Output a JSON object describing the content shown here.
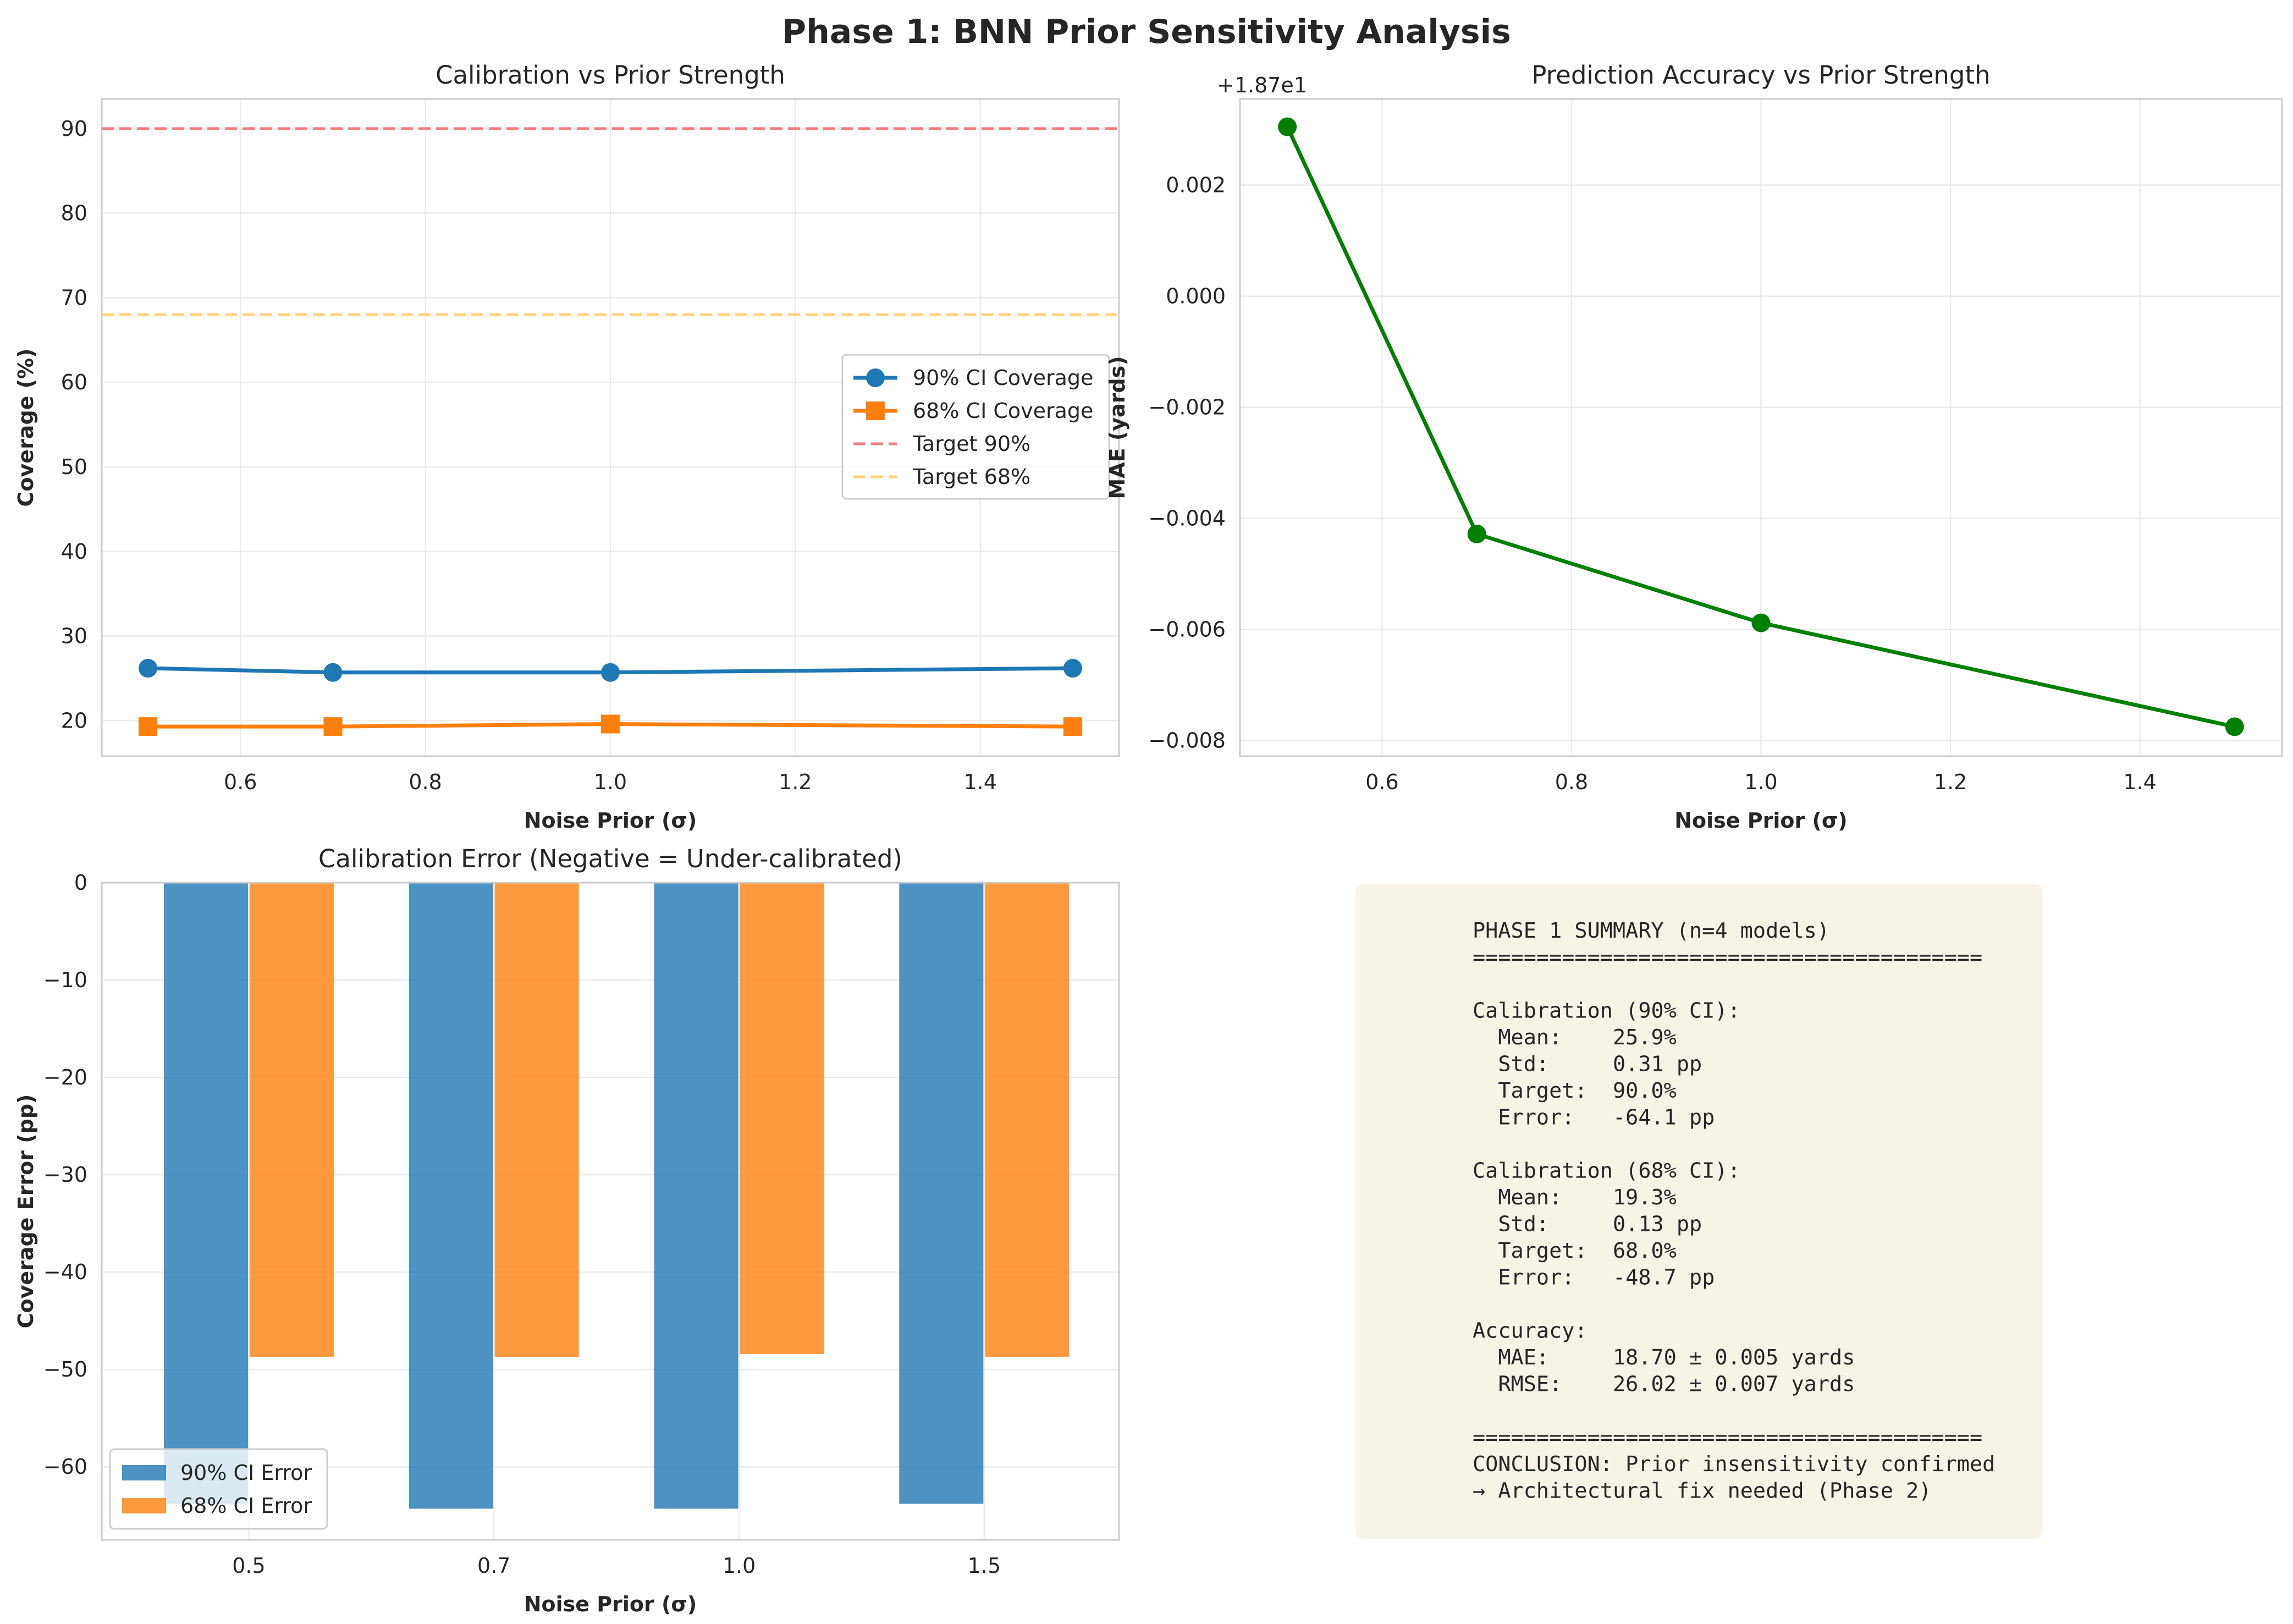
{
  "figure": {
    "suptitle": "Phase 1: BNN Prior Sensitivity Analysis"
  },
  "chart_data": [
    {
      "type": "line",
      "title": "Calibration vs Prior Strength",
      "xlabel": "Noise Prior (σ)",
      "ylabel": "Coverage (%)",
      "xlim": [
        0.45,
        1.55
      ],
      "ylim": [
        15.8,
        93.5
      ],
      "xticks": [
        0.6,
        0.8,
        1.0,
        1.2,
        1.4
      ],
      "xtick_labels": [
        "0.6",
        "0.8",
        "1.0",
        "1.2",
        "1.4"
      ],
      "yticks": [
        20,
        30,
        40,
        50,
        60,
        70,
        80,
        90
      ],
      "ytick_labels": [
        "20",
        "30",
        "40",
        "50",
        "60",
        "70",
        "80",
        "90"
      ],
      "grid": true,
      "legend": "center-right",
      "x": [
        0.5,
        0.7,
        1.0,
        1.5
      ],
      "series": [
        {
          "name": "90% CI Coverage",
          "values": [
            26.2,
            25.7,
            25.7,
            26.2
          ],
          "color": "#1f77b4",
          "marker": "circle"
        },
        {
          "name": "68% CI Coverage",
          "values": [
            19.3,
            19.3,
            19.6,
            19.3
          ],
          "color": "#ff7f0e",
          "marker": "square"
        }
      ],
      "hlines": [
        {
          "name": "Target 90%",
          "value": 90,
          "color": "#f08080",
          "style": "dashed"
        },
        {
          "name": "Target 68%",
          "value": 68,
          "color": "#ffd27f",
          "style": "dashed"
        }
      ]
    },
    {
      "type": "line",
      "title": "Prediction Accuracy vs Prior Strength",
      "xlabel": "Noise Prior (σ)",
      "ylabel": "MAE (yards)",
      "offset_label": "+1.87e1",
      "xlim": [
        0.45,
        1.55
      ],
      "ylim": [
        -0.00828,
        0.00355
      ],
      "xticks": [
        0.6,
        0.8,
        1.0,
        1.2,
        1.4
      ],
      "xtick_labels": [
        "0.6",
        "0.8",
        "1.0",
        "1.2",
        "1.4"
      ],
      "yticks": [
        -0.008,
        -0.006,
        -0.004,
        -0.002,
        0.0,
        0.002
      ],
      "ytick_labels": [
        "−0.008",
        "−0.006",
        "−0.004",
        "−0.002",
        "0.000",
        "0.002"
      ],
      "grid": true,
      "x": [
        0.5,
        0.7,
        1.0,
        1.5
      ],
      "series": [
        {
          "name": "",
          "values": [
            0.00305,
            -0.00428,
            -0.00588,
            -0.00775
          ],
          "color": "#008000",
          "marker": "circle"
        }
      ]
    },
    {
      "type": "bar",
      "title": "Calibration Error (Negative = Under-calibrated)",
      "xlabel": "Noise Prior (σ)",
      "ylabel": "Coverage Error (pp)",
      "categories": [
        "0.5",
        "0.7",
        "1.0",
        "1.5"
      ],
      "ylim": [
        -67.5,
        0
      ],
      "yticks": [
        0,
        -10,
        -20,
        -30,
        -40,
        -50,
        -60
      ],
      "ytick_labels": [
        "0",
        "−10",
        "−20",
        "−30",
        "−40",
        "−50",
        "−60"
      ],
      "grid": true,
      "legend": "bottom-left",
      "series": [
        {
          "name": "90% CI Error",
          "values": [
            -63.8,
            -64.3,
            -64.3,
            -63.8
          ],
          "color": "#1f77b4"
        },
        {
          "name": "68% CI Error",
          "values": [
            -48.7,
            -48.7,
            -48.4,
            -48.7
          ],
          "color": "#ff7f0e"
        }
      ]
    }
  ],
  "summary": {
    "lines": [
      "PHASE 1 SUMMARY (n=4 models)",
      "========================================",
      "",
      "Calibration (90% CI):",
      "  Mean:    25.9%",
      "  Std:     0.31 pp",
      "  Target:  90.0%",
      "  Error:   -64.1 pp",
      "",
      "Calibration (68% CI):",
      "  Mean:    19.3%",
      "  Std:     0.13 pp",
      "  Target:  68.0%",
      "  Error:   -48.7 pp",
      "",
      "Accuracy:",
      "  MAE:     18.70 ± 0.005 yards",
      "  RMSE:    26.02 ± 0.007 yards",
      "",
      "========================================",
      "CONCLUSION: Prior insensitivity confirmed",
      "→ Architectural fix needed (Phase 2)"
    ]
  }
}
